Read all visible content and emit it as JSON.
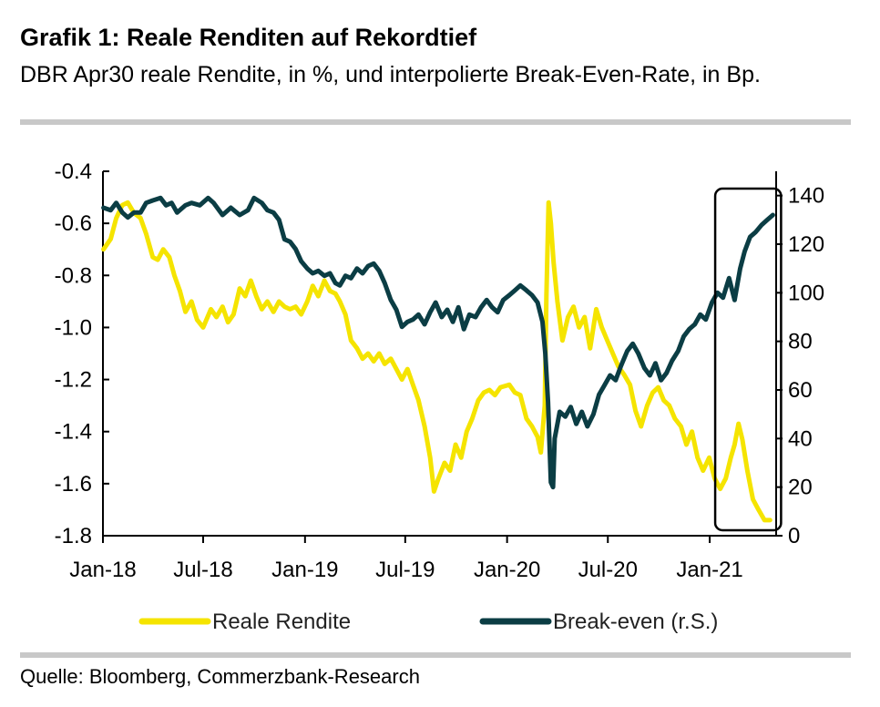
{
  "header": {
    "title": "Grafik 1: Reale Renditen auf Rekordtief",
    "subtitle": "DBR Apr30 reale Rendite, in %, und interpolierte Break-Even-Rate, in Bp."
  },
  "footer": {
    "source": "Quelle: Bloomberg, Commerzbank-Research"
  },
  "chart_data": {
    "type": "line",
    "x_tick_labels": [
      "Jan-18",
      "Jul-18",
      "Jan-19",
      "Jul-19",
      "Jan-20",
      "Jul-20",
      "Jan-21"
    ],
    "x_tick_positions": [
      "2018-01-01",
      "2018-07-01",
      "2019-01-01",
      "2019-07-01",
      "2020-01-01",
      "2020-07-01",
      "2021-01-01"
    ],
    "xlim": [
      "2018-01-01",
      "2021-05-01"
    ],
    "y_left": {
      "ylim": [
        -1.8,
        -0.4
      ],
      "ticks": [
        "-0.4",
        "-0.6",
        "-0.8",
        "-1.0",
        "-1.2",
        "-1.4",
        "-1.6",
        "-1.8"
      ],
      "tick_values": [
        -0.4,
        -0.6,
        -0.8,
        -1.0,
        -1.2,
        -1.4,
        -1.6,
        -1.8
      ]
    },
    "y_right": {
      "ylim": [
        0,
        150
      ],
      "ticks": [
        "0",
        "20",
        "40",
        "60",
        "80",
        "100",
        "120",
        "140"
      ],
      "tick_values": [
        0,
        20,
        40,
        60,
        80,
        100,
        120,
        140
      ]
    },
    "grid": false,
    "legend_position": "bottom",
    "highlight_box": {
      "x_from": "2021-01-01",
      "x_to": "2021-04-30"
    },
    "series": [
      {
        "name": "Reale Rendite",
        "axis": "left",
        "color": "#f5e400",
        "points": [
          [
            "2018-01-02",
            -0.7
          ],
          [
            "2018-01-15",
            -0.66
          ],
          [
            "2018-01-25",
            -0.58
          ],
          [
            "2018-02-05",
            -0.53
          ],
          [
            "2018-02-15",
            -0.52
          ],
          [
            "2018-02-26",
            -0.56
          ],
          [
            "2018-03-10",
            -0.58
          ],
          [
            "2018-03-20",
            -0.64
          ],
          [
            "2018-04-01",
            -0.73
          ],
          [
            "2018-04-10",
            -0.74
          ],
          [
            "2018-04-20",
            -0.7
          ],
          [
            "2018-05-01",
            -0.73
          ],
          [
            "2018-05-10",
            -0.8
          ],
          [
            "2018-05-20",
            -0.86
          ],
          [
            "2018-05-30",
            -0.94
          ],
          [
            "2018-06-10",
            -0.9
          ],
          [
            "2018-06-20",
            -0.97
          ],
          [
            "2018-07-01",
            -1.0
          ],
          [
            "2018-07-15",
            -0.93
          ],
          [
            "2018-07-25",
            -0.96
          ],
          [
            "2018-08-05",
            -0.92
          ],
          [
            "2018-08-15",
            -0.98
          ],
          [
            "2018-08-25",
            -0.95
          ],
          [
            "2018-09-05",
            -0.85
          ],
          [
            "2018-09-15",
            -0.88
          ],
          [
            "2018-09-25",
            -0.82
          ],
          [
            "2018-10-05",
            -0.88
          ],
          [
            "2018-10-15",
            -0.93
          ],
          [
            "2018-10-25",
            -0.9
          ],
          [
            "2018-11-05",
            -0.94
          ],
          [
            "2018-11-15",
            -0.9
          ],
          [
            "2018-11-25",
            -0.92
          ],
          [
            "2018-12-05",
            -0.93
          ],
          [
            "2018-12-15",
            -0.92
          ],
          [
            "2018-12-25",
            -0.95
          ],
          [
            "2019-01-05",
            -0.9
          ],
          [
            "2019-01-15",
            -0.84
          ],
          [
            "2019-01-25",
            -0.88
          ],
          [
            "2019-02-05",
            -0.82
          ],
          [
            "2019-02-15",
            -0.86
          ],
          [
            "2019-02-25",
            -0.87
          ],
          [
            "2019-03-05",
            -0.9
          ],
          [
            "2019-03-15",
            -0.95
          ],
          [
            "2019-03-25",
            -1.05
          ],
          [
            "2019-04-05",
            -1.08
          ],
          [
            "2019-04-15",
            -1.12
          ],
          [
            "2019-04-25",
            -1.1
          ],
          [
            "2019-05-05",
            -1.13
          ],
          [
            "2019-05-15",
            -1.1
          ],
          [
            "2019-05-25",
            -1.14
          ],
          [
            "2019-06-05",
            -1.12
          ],
          [
            "2019-06-15",
            -1.16
          ],
          [
            "2019-06-25",
            -1.2
          ],
          [
            "2019-07-05",
            -1.16
          ],
          [
            "2019-07-15",
            -1.22
          ],
          [
            "2019-07-25",
            -1.28
          ],
          [
            "2019-08-05",
            -1.38
          ],
          [
            "2019-08-15",
            -1.5
          ],
          [
            "2019-08-22",
            -1.63
          ],
          [
            "2019-08-30",
            -1.58
          ],
          [
            "2019-09-10",
            -1.52
          ],
          [
            "2019-09-20",
            -1.55
          ],
          [
            "2019-09-30",
            -1.45
          ],
          [
            "2019-10-10",
            -1.5
          ],
          [
            "2019-10-20",
            -1.4
          ],
          [
            "2019-10-30",
            -1.35
          ],
          [
            "2019-11-10",
            -1.28
          ],
          [
            "2019-11-20",
            -1.25
          ],
          [
            "2019-11-30",
            -1.24
          ],
          [
            "2019-12-10",
            -1.26
          ],
          [
            "2019-12-20",
            -1.23
          ],
          [
            "2020-01-05",
            -1.22
          ],
          [
            "2020-01-15",
            -1.25
          ],
          [
            "2020-01-25",
            -1.26
          ],
          [
            "2020-02-05",
            -1.35
          ],
          [
            "2020-02-15",
            -1.38
          ],
          [
            "2020-02-25",
            -1.42
          ],
          [
            "2020-03-02",
            -1.48
          ],
          [
            "2020-03-09",
            -1.3
          ],
          [
            "2020-03-12",
            -0.88
          ],
          [
            "2020-03-16",
            -0.52
          ],
          [
            "2020-03-20",
            -0.6
          ],
          [
            "2020-03-25",
            -0.75
          ],
          [
            "2020-04-01",
            -0.9
          ],
          [
            "2020-04-10",
            -1.05
          ],
          [
            "2020-04-20",
            -0.96
          ],
          [
            "2020-04-30",
            -0.92
          ],
          [
            "2020-05-10",
            -1.0
          ],
          [
            "2020-05-20",
            -0.96
          ],
          [
            "2020-05-30",
            -1.08
          ],
          [
            "2020-06-10",
            -0.93
          ],
          [
            "2020-06-20",
            -1.0
          ],
          [
            "2020-06-30",
            -1.05
          ],
          [
            "2020-07-10",
            -1.1
          ],
          [
            "2020-07-20",
            -1.15
          ],
          [
            "2020-07-30",
            -1.18
          ],
          [
            "2020-08-10",
            -1.22
          ],
          [
            "2020-08-20",
            -1.32
          ],
          [
            "2020-08-30",
            -1.38
          ],
          [
            "2020-09-10",
            -1.3
          ],
          [
            "2020-09-20",
            -1.25
          ],
          [
            "2020-09-30",
            -1.23
          ],
          [
            "2020-10-10",
            -1.28
          ],
          [
            "2020-10-20",
            -1.3
          ],
          [
            "2020-10-30",
            -1.35
          ],
          [
            "2020-11-10",
            -1.38
          ],
          [
            "2020-11-20",
            -1.45
          ],
          [
            "2020-11-30",
            -1.4
          ],
          [
            "2020-12-10",
            -1.5
          ],
          [
            "2020-12-20",
            -1.55
          ],
          [
            "2020-12-31",
            -1.5
          ],
          [
            "2021-01-10",
            -1.58
          ],
          [
            "2021-01-20",
            -1.62
          ],
          [
            "2021-01-30",
            -1.58
          ],
          [
            "2021-02-08",
            -1.5
          ],
          [
            "2021-02-15",
            -1.45
          ],
          [
            "2021-02-22",
            -1.37
          ],
          [
            "2021-03-01",
            -1.43
          ],
          [
            "2021-03-10",
            -1.55
          ],
          [
            "2021-03-20",
            -1.66
          ],
          [
            "2021-03-30",
            -1.7
          ],
          [
            "2021-04-10",
            -1.74
          ],
          [
            "2021-04-20",
            -1.74
          ]
        ]
      },
      {
        "name": "Break-even (r.S.)",
        "axis": "right",
        "color": "#0b3d44",
        "points": [
          [
            "2018-01-02",
            135
          ],
          [
            "2018-01-15",
            134
          ],
          [
            "2018-01-25",
            137
          ],
          [
            "2018-02-05",
            133
          ],
          [
            "2018-02-15",
            131
          ],
          [
            "2018-02-26",
            133
          ],
          [
            "2018-03-10",
            133
          ],
          [
            "2018-03-20",
            137
          ],
          [
            "2018-04-01",
            138
          ],
          [
            "2018-04-15",
            139
          ],
          [
            "2018-04-25",
            136
          ],
          [
            "2018-05-05",
            137
          ],
          [
            "2018-05-15",
            133
          ],
          [
            "2018-05-30",
            136
          ],
          [
            "2018-06-10",
            137
          ],
          [
            "2018-06-25",
            136
          ],
          [
            "2018-07-10",
            139
          ],
          [
            "2018-07-20",
            137
          ],
          [
            "2018-08-05",
            132
          ],
          [
            "2018-08-20",
            135
          ],
          [
            "2018-09-05",
            132
          ],
          [
            "2018-09-20",
            134
          ],
          [
            "2018-10-01",
            139
          ],
          [
            "2018-10-15",
            137
          ],
          [
            "2018-10-25",
            134
          ],
          [
            "2018-11-05",
            133
          ],
          [
            "2018-11-15",
            130
          ],
          [
            "2018-11-25",
            122
          ],
          [
            "2018-12-05",
            121
          ],
          [
            "2018-12-15",
            118
          ],
          [
            "2018-12-25",
            113
          ],
          [
            "2019-01-05",
            110
          ],
          [
            "2019-01-15",
            108
          ],
          [
            "2019-01-25",
            109
          ],
          [
            "2019-02-05",
            107
          ],
          [
            "2019-02-15",
            108
          ],
          [
            "2019-02-25",
            104
          ],
          [
            "2019-03-05",
            103
          ],
          [
            "2019-03-15",
            107
          ],
          [
            "2019-03-25",
            106
          ],
          [
            "2019-04-05",
            110
          ],
          [
            "2019-04-15",
            108
          ],
          [
            "2019-04-25",
            111
          ],
          [
            "2019-05-05",
            112
          ],
          [
            "2019-05-15",
            109
          ],
          [
            "2019-05-25",
            104
          ],
          [
            "2019-06-05",
            97
          ],
          [
            "2019-06-15",
            93
          ],
          [
            "2019-06-25",
            86
          ],
          [
            "2019-07-05",
            88
          ],
          [
            "2019-07-15",
            89
          ],
          [
            "2019-07-25",
            91
          ],
          [
            "2019-08-05",
            87
          ],
          [
            "2019-08-15",
            92
          ],
          [
            "2019-08-25",
            96
          ],
          [
            "2019-09-05",
            90
          ],
          [
            "2019-09-15",
            93
          ],
          [
            "2019-09-25",
            88
          ],
          [
            "2019-10-05",
            94
          ],
          [
            "2019-10-15",
            85
          ],
          [
            "2019-10-25",
            91
          ],
          [
            "2019-11-05",
            90
          ],
          [
            "2019-11-15",
            94
          ],
          [
            "2019-11-25",
            97
          ],
          [
            "2019-12-05",
            94
          ],
          [
            "2019-12-15",
            92
          ],
          [
            "2019-12-25",
            97
          ],
          [
            "2020-01-05",
            99
          ],
          [
            "2020-01-15",
            101
          ],
          [
            "2020-01-25",
            103
          ],
          [
            "2020-02-05",
            101
          ],
          [
            "2020-02-15",
            99
          ],
          [
            "2020-02-25",
            96
          ],
          [
            "2020-03-05",
            88
          ],
          [
            "2020-03-10",
            75
          ],
          [
            "2020-03-15",
            55
          ],
          [
            "2020-03-20",
            22
          ],
          [
            "2020-03-24",
            20
          ],
          [
            "2020-03-27",
            40
          ],
          [
            "2020-04-05",
            51
          ],
          [
            "2020-04-15",
            49
          ],
          [
            "2020-04-25",
            53
          ],
          [
            "2020-05-05",
            46
          ],
          [
            "2020-05-15",
            51
          ],
          [
            "2020-05-25",
            45
          ],
          [
            "2020-06-05",
            50
          ],
          [
            "2020-06-15",
            58
          ],
          [
            "2020-06-25",
            62
          ],
          [
            "2020-07-05",
            66
          ],
          [
            "2020-07-15",
            64
          ],
          [
            "2020-07-25",
            70
          ],
          [
            "2020-08-05",
            76
          ],
          [
            "2020-08-15",
            79
          ],
          [
            "2020-08-25",
            75
          ],
          [
            "2020-09-05",
            69
          ],
          [
            "2020-09-15",
            66
          ],
          [
            "2020-09-25",
            71
          ],
          [
            "2020-10-05",
            64
          ],
          [
            "2020-10-15",
            67
          ],
          [
            "2020-10-25",
            72
          ],
          [
            "2020-11-05",
            76
          ],
          [
            "2020-11-15",
            82
          ],
          [
            "2020-11-25",
            85
          ],
          [
            "2020-12-05",
            87
          ],
          [
            "2020-12-15",
            91
          ],
          [
            "2020-12-25",
            89
          ],
          [
            "2021-01-05",
            96
          ],
          [
            "2021-01-15",
            100
          ],
          [
            "2021-01-25",
            98
          ],
          [
            "2021-02-05",
            106
          ],
          [
            "2021-02-15",
            97
          ],
          [
            "2021-02-25",
            110
          ],
          [
            "2021-03-05",
            117
          ],
          [
            "2021-03-15",
            123
          ],
          [
            "2021-03-25",
            125
          ],
          [
            "2021-04-05",
            128
          ],
          [
            "2021-04-15",
            130
          ],
          [
            "2021-04-25",
            132
          ]
        ]
      }
    ]
  }
}
